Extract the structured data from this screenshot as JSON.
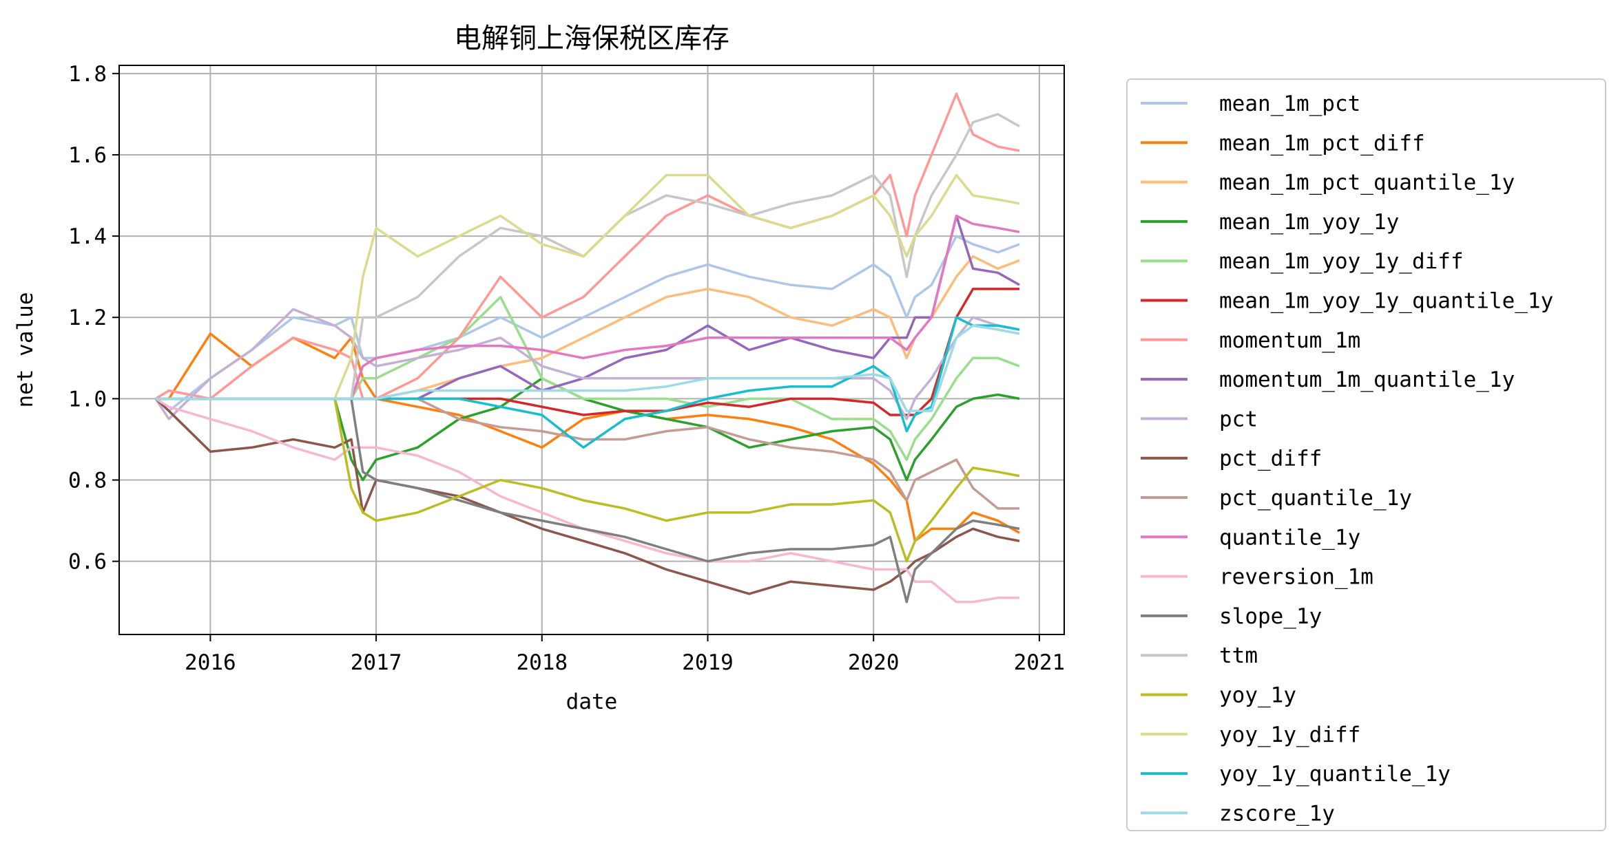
{
  "chart_data": {
    "type": "line",
    "title": "电解铜上海保税区库存",
    "xlabel": "date",
    "ylabel": "net value",
    "xlim": [
      2015.45,
      2021.15
    ],
    "ylim": [
      0.42,
      1.82
    ],
    "xticks": [
      2016,
      2017,
      2018,
      2019,
      2020,
      2021
    ],
    "xtick_labels": [
      "2016",
      "2017",
      "2018",
      "2019",
      "2020",
      "2021"
    ],
    "yticks": [
      0.6,
      0.8,
      1.0,
      1.2,
      1.4,
      1.6,
      1.8
    ],
    "ytick_labels": [
      "0.6",
      "0.8",
      "1.0",
      "1.2",
      "1.4",
      "1.6",
      "1.8"
    ],
    "grid": true,
    "legend_position": "outside-right",
    "x": [
      2015.67,
      2015.75,
      2016.0,
      2016.25,
      2016.5,
      2016.75,
      2016.85,
      2016.92,
      2017.0,
      2017.25,
      2017.5,
      2017.75,
      2018.0,
      2018.25,
      2018.5,
      2018.75,
      2019.0,
      2019.25,
      2019.5,
      2019.75,
      2020.0,
      2020.1,
      2020.2,
      2020.25,
      2020.35,
      2020.5,
      2020.6,
      2020.75,
      2020.88
    ],
    "series": [
      {
        "name": "mean_1m_pct",
        "color": "#aec7e8",
        "values": [
          1.0,
          0.97,
          1.05,
          1.12,
          1.2,
          1.18,
          1.2,
          1.1,
          1.1,
          1.12,
          1.15,
          1.2,
          1.15,
          1.2,
          1.25,
          1.3,
          1.33,
          1.3,
          1.28,
          1.27,
          1.33,
          1.3,
          1.2,
          1.25,
          1.28,
          1.4,
          1.38,
          1.36,
          1.38
        ]
      },
      {
        "name": "mean_1m_pct_diff",
        "color": "#ff7f0e",
        "values": [
          1.0,
          1.0,
          1.16,
          1.08,
          1.15,
          1.1,
          1.15,
          1.05,
          1.0,
          0.98,
          0.96,
          0.92,
          0.88,
          0.95,
          0.97,
          0.95,
          0.96,
          0.95,
          0.93,
          0.9,
          0.84,
          0.8,
          0.75,
          0.65,
          0.68,
          0.68,
          0.72,
          0.7,
          0.67
        ]
      },
      {
        "name": "mean_1m_pct_quantile_1y",
        "color": "#ffbb78",
        "values": [
          1.0,
          1.0,
          1.0,
          1.0,
          1.0,
          1.0,
          1.0,
          1.0,
          1.0,
          1.02,
          1.05,
          1.08,
          1.1,
          1.15,
          1.2,
          1.25,
          1.27,
          1.25,
          1.2,
          1.18,
          1.22,
          1.2,
          1.1,
          1.15,
          1.2,
          1.3,
          1.35,
          1.32,
          1.34
        ]
      },
      {
        "name": "mean_1m_yoy_1y",
        "color": "#2ca02c",
        "values": [
          1.0,
          1.0,
          1.0,
          1.0,
          1.0,
          1.0,
          0.85,
          0.8,
          0.85,
          0.88,
          0.95,
          0.98,
          1.05,
          1.0,
          0.97,
          0.95,
          0.93,
          0.88,
          0.9,
          0.92,
          0.93,
          0.9,
          0.8,
          0.85,
          0.9,
          0.98,
          1.0,
          1.01,
          1.0
        ]
      },
      {
        "name": "mean_1m_yoy_1y_diff",
        "color": "#98df8a",
        "values": [
          1.0,
          1.0,
          1.0,
          1.0,
          1.0,
          1.0,
          1.0,
          1.05,
          1.05,
          1.1,
          1.15,
          1.25,
          1.05,
          1.0,
          1.0,
          1.0,
          0.98,
          1.0,
          1.0,
          0.95,
          0.95,
          0.92,
          0.85,
          0.9,
          0.95,
          1.05,
          1.1,
          1.1,
          1.08
        ]
      },
      {
        "name": "mean_1m_yoy_1y_quantile_1y",
        "color": "#d62728",
        "values": [
          1.0,
          1.0,
          1.0,
          1.0,
          1.0,
          1.0,
          1.0,
          1.0,
          1.0,
          1.0,
          1.0,
          1.0,
          0.98,
          0.96,
          0.97,
          0.97,
          0.99,
          0.98,
          1.0,
          1.0,
          0.99,
          0.96,
          0.96,
          0.96,
          1.0,
          1.2,
          1.27,
          1.27,
          1.27
        ]
      },
      {
        "name": "momentum_1m",
        "color": "#ff9896",
        "values": [
          1.0,
          1.02,
          1.0,
          1.08,
          1.15,
          1.12,
          1.1,
          1.0,
          1.0,
          1.05,
          1.15,
          1.3,
          1.2,
          1.25,
          1.35,
          1.45,
          1.5,
          1.45,
          1.42,
          1.45,
          1.5,
          1.55,
          1.4,
          1.5,
          1.6,
          1.75,
          1.65,
          1.62,
          1.61
        ]
      },
      {
        "name": "momentum_1m_quantile_1y",
        "color": "#9467bd",
        "values": [
          1.0,
          1.0,
          1.0,
          1.0,
          1.0,
          1.0,
          1.0,
          1.0,
          1.0,
          1.0,
          1.05,
          1.08,
          1.02,
          1.05,
          1.1,
          1.12,
          1.18,
          1.12,
          1.15,
          1.12,
          1.1,
          1.15,
          1.15,
          1.2,
          1.2,
          1.45,
          1.32,
          1.31,
          1.28
        ]
      },
      {
        "name": "pct",
        "color": "#c5b0d5",
        "values": [
          1.0,
          0.95,
          1.05,
          1.12,
          1.22,
          1.18,
          1.15,
          1.1,
          1.08,
          1.1,
          1.12,
          1.15,
          1.08,
          1.05,
          1.05,
          1.05,
          1.05,
          1.05,
          1.05,
          1.05,
          1.05,
          1.02,
          0.95,
          1.0,
          1.05,
          1.15,
          1.2,
          1.18,
          1.17
        ]
      },
      {
        "name": "pct_diff",
        "color": "#8c564b",
        "values": [
          1.0,
          0.97,
          0.87,
          0.88,
          0.9,
          0.88,
          0.9,
          0.72,
          0.8,
          0.78,
          0.76,
          0.72,
          0.68,
          0.65,
          0.62,
          0.58,
          0.55,
          0.52,
          0.55,
          0.54,
          0.53,
          0.55,
          0.58,
          0.6,
          0.62,
          0.66,
          0.68,
          0.66,
          0.65
        ]
      },
      {
        "name": "pct_quantile_1y",
        "color": "#c49c94",
        "values": [
          1.0,
          1.0,
          1.0,
          1.0,
          1.0,
          1.0,
          1.0,
          1.0,
          1.0,
          1.0,
          0.95,
          0.93,
          0.92,
          0.9,
          0.9,
          0.92,
          0.93,
          0.9,
          0.88,
          0.87,
          0.85,
          0.82,
          0.75,
          0.8,
          0.82,
          0.85,
          0.78,
          0.73,
          0.73
        ]
      },
      {
        "name": "quantile_1y",
        "color": "#e377c2",
        "values": [
          1.0,
          1.0,
          1.0,
          1.0,
          1.0,
          1.0,
          1.0,
          1.08,
          1.1,
          1.12,
          1.13,
          1.13,
          1.12,
          1.1,
          1.12,
          1.13,
          1.15,
          1.15,
          1.15,
          1.15,
          1.15,
          1.15,
          1.12,
          1.15,
          1.2,
          1.45,
          1.43,
          1.42,
          1.41
        ]
      },
      {
        "name": "reversion_1m",
        "color": "#f7b6d2",
        "values": [
          1.0,
          0.98,
          0.95,
          0.92,
          0.88,
          0.85,
          0.88,
          0.88,
          0.88,
          0.86,
          0.82,
          0.76,
          0.72,
          0.68,
          0.65,
          0.62,
          0.6,
          0.6,
          0.62,
          0.6,
          0.58,
          0.58,
          0.58,
          0.55,
          0.55,
          0.5,
          0.5,
          0.51,
          0.51
        ]
      },
      {
        "name": "slope_1y",
        "color": "#7f7f7f",
        "values": [
          1.0,
          1.0,
          1.0,
          1.0,
          1.0,
          1.0,
          1.0,
          0.82,
          0.8,
          0.78,
          0.75,
          0.72,
          0.7,
          0.68,
          0.66,
          0.63,
          0.6,
          0.62,
          0.63,
          0.63,
          0.64,
          0.66,
          0.5,
          0.58,
          0.62,
          0.68,
          0.7,
          0.69,
          0.68
        ]
      },
      {
        "name": "ttm",
        "color": "#c7c7c7",
        "values": [
          1.0,
          1.0,
          1.0,
          1.0,
          1.0,
          1.0,
          1.0,
          1.2,
          1.2,
          1.25,
          1.35,
          1.42,
          1.4,
          1.35,
          1.45,
          1.5,
          1.48,
          1.45,
          1.48,
          1.5,
          1.55,
          1.5,
          1.3,
          1.4,
          1.5,
          1.6,
          1.68,
          1.7,
          1.67
        ]
      },
      {
        "name": "yoy_1y",
        "color": "#bcbd22",
        "values": [
          1.0,
          1.0,
          1.0,
          1.0,
          1.0,
          1.0,
          0.78,
          0.72,
          0.7,
          0.72,
          0.76,
          0.8,
          0.78,
          0.75,
          0.73,
          0.7,
          0.72,
          0.72,
          0.74,
          0.74,
          0.75,
          0.72,
          0.6,
          0.65,
          0.7,
          0.78,
          0.83,
          0.82,
          0.81
        ]
      },
      {
        "name": "yoy_1y_diff",
        "color": "#dbdb8d",
        "values": [
          1.0,
          1.0,
          1.0,
          1.0,
          1.0,
          1.0,
          1.1,
          1.3,
          1.42,
          1.35,
          1.4,
          1.45,
          1.38,
          1.35,
          1.45,
          1.55,
          1.55,
          1.45,
          1.42,
          1.45,
          1.5,
          1.45,
          1.35,
          1.4,
          1.45,
          1.55,
          1.5,
          1.49,
          1.48
        ]
      },
      {
        "name": "yoy_1y_quantile_1y",
        "color": "#17becf",
        "values": [
          1.0,
          1.0,
          1.0,
          1.0,
          1.0,
          1.0,
          1.0,
          1.0,
          1.0,
          1.0,
          1.0,
          0.98,
          0.96,
          0.88,
          0.95,
          0.97,
          1.0,
          1.02,
          1.03,
          1.03,
          1.08,
          1.05,
          0.92,
          0.96,
          0.98,
          1.2,
          1.18,
          1.18,
          1.17
        ]
      },
      {
        "name": "zscore_1y",
        "color": "#9edae5",
        "values": [
          1.0,
          1.0,
          1.0,
          1.0,
          1.0,
          1.0,
          1.0,
          1.0,
          1.0,
          1.02,
          1.02,
          1.02,
          1.02,
          1.02,
          1.02,
          1.03,
          1.05,
          1.05,
          1.05,
          1.05,
          1.06,
          1.05,
          0.97,
          0.97,
          0.97,
          1.15,
          1.18,
          1.17,
          1.16
        ]
      }
    ]
  }
}
